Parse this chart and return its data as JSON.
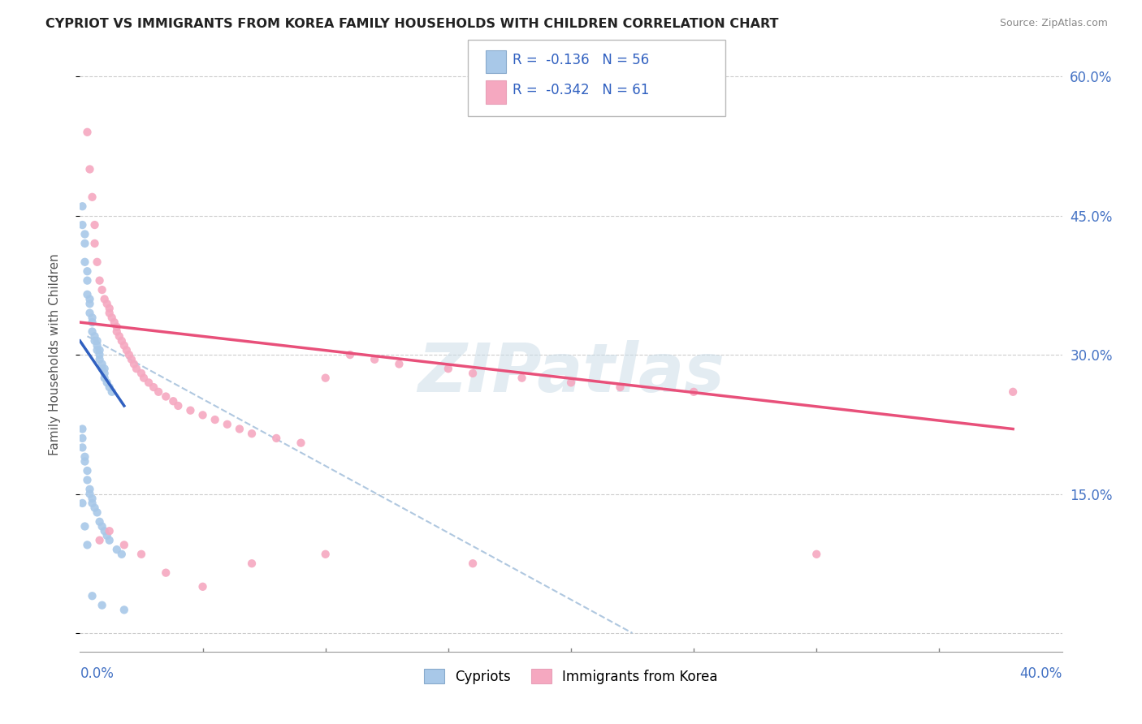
{
  "title": "CYPRIOT VS IMMIGRANTS FROM KOREA FAMILY HOUSEHOLDS WITH CHILDREN CORRELATION CHART",
  "source": "Source: ZipAtlas.com",
  "ylabel": "Family Households with Children",
  "legend_cypriot_label": "Cypriots",
  "legend_korea_label": "Immigrants from Korea",
  "watermark": "ZIPatlas",
  "cypriot_R": -0.136,
  "cypriot_N": 56,
  "korea_R": -0.342,
  "korea_N": 61,
  "cypriot_color": "#a8c8e8",
  "korea_color": "#f5a8c0",
  "cypriot_line_color": "#3060c0",
  "korea_line_color": "#e8507a",
  "dashed_line_color": "#b0c8e0",
  "xmin": 0.0,
  "xmax": 0.4,
  "ymin": 0.0,
  "ymax": 0.62,
  "ytick_vals": [
    0.0,
    0.15,
    0.3,
    0.45,
    0.6
  ],
  "cypriot_x": [
    0.001,
    0.001,
    0.002,
    0.002,
    0.002,
    0.003,
    0.003,
    0.003,
    0.004,
    0.004,
    0.004,
    0.005,
    0.005,
    0.005,
    0.006,
    0.006,
    0.007,
    0.007,
    0.007,
    0.008,
    0.008,
    0.008,
    0.009,
    0.009,
    0.01,
    0.01,
    0.01,
    0.011,
    0.012,
    0.013,
    0.001,
    0.001,
    0.001,
    0.002,
    0.002,
    0.003,
    0.003,
    0.004,
    0.004,
    0.005,
    0.005,
    0.006,
    0.007,
    0.008,
    0.009,
    0.01,
    0.011,
    0.012,
    0.015,
    0.017,
    0.001,
    0.002,
    0.003,
    0.005,
    0.009,
    0.018
  ],
  "cypriot_y": [
    0.46,
    0.44,
    0.43,
    0.42,
    0.4,
    0.39,
    0.38,
    0.365,
    0.36,
    0.355,
    0.345,
    0.34,
    0.335,
    0.325,
    0.32,
    0.315,
    0.315,
    0.31,
    0.305,
    0.305,
    0.3,
    0.295,
    0.29,
    0.285,
    0.285,
    0.28,
    0.275,
    0.27,
    0.265,
    0.26,
    0.22,
    0.21,
    0.2,
    0.19,
    0.185,
    0.175,
    0.165,
    0.155,
    0.15,
    0.145,
    0.14,
    0.135,
    0.13,
    0.12,
    0.115,
    0.11,
    0.105,
    0.1,
    0.09,
    0.085,
    0.14,
    0.115,
    0.095,
    0.04,
    0.03,
    0.025
  ],
  "korea_x": [
    0.003,
    0.004,
    0.005,
    0.006,
    0.006,
    0.007,
    0.008,
    0.009,
    0.01,
    0.011,
    0.012,
    0.012,
    0.013,
    0.014,
    0.015,
    0.015,
    0.016,
    0.017,
    0.018,
    0.019,
    0.02,
    0.021,
    0.022,
    0.023,
    0.025,
    0.026,
    0.028,
    0.03,
    0.032,
    0.035,
    0.038,
    0.04,
    0.045,
    0.05,
    0.055,
    0.06,
    0.065,
    0.07,
    0.08,
    0.09,
    0.1,
    0.11,
    0.12,
    0.13,
    0.15,
    0.16,
    0.18,
    0.2,
    0.22,
    0.25,
    0.008,
    0.012,
    0.018,
    0.025,
    0.035,
    0.05,
    0.07,
    0.1,
    0.16,
    0.3,
    0.38
  ],
  "korea_y": [
    0.54,
    0.5,
    0.47,
    0.44,
    0.42,
    0.4,
    0.38,
    0.37,
    0.36,
    0.355,
    0.35,
    0.345,
    0.34,
    0.335,
    0.33,
    0.325,
    0.32,
    0.315,
    0.31,
    0.305,
    0.3,
    0.295,
    0.29,
    0.285,
    0.28,
    0.275,
    0.27,
    0.265,
    0.26,
    0.255,
    0.25,
    0.245,
    0.24,
    0.235,
    0.23,
    0.225,
    0.22,
    0.215,
    0.21,
    0.205,
    0.275,
    0.3,
    0.295,
    0.29,
    0.285,
    0.28,
    0.275,
    0.27,
    0.265,
    0.26,
    0.1,
    0.11,
    0.095,
    0.085,
    0.065,
    0.05,
    0.075,
    0.085,
    0.075,
    0.085,
    0.26
  ]
}
